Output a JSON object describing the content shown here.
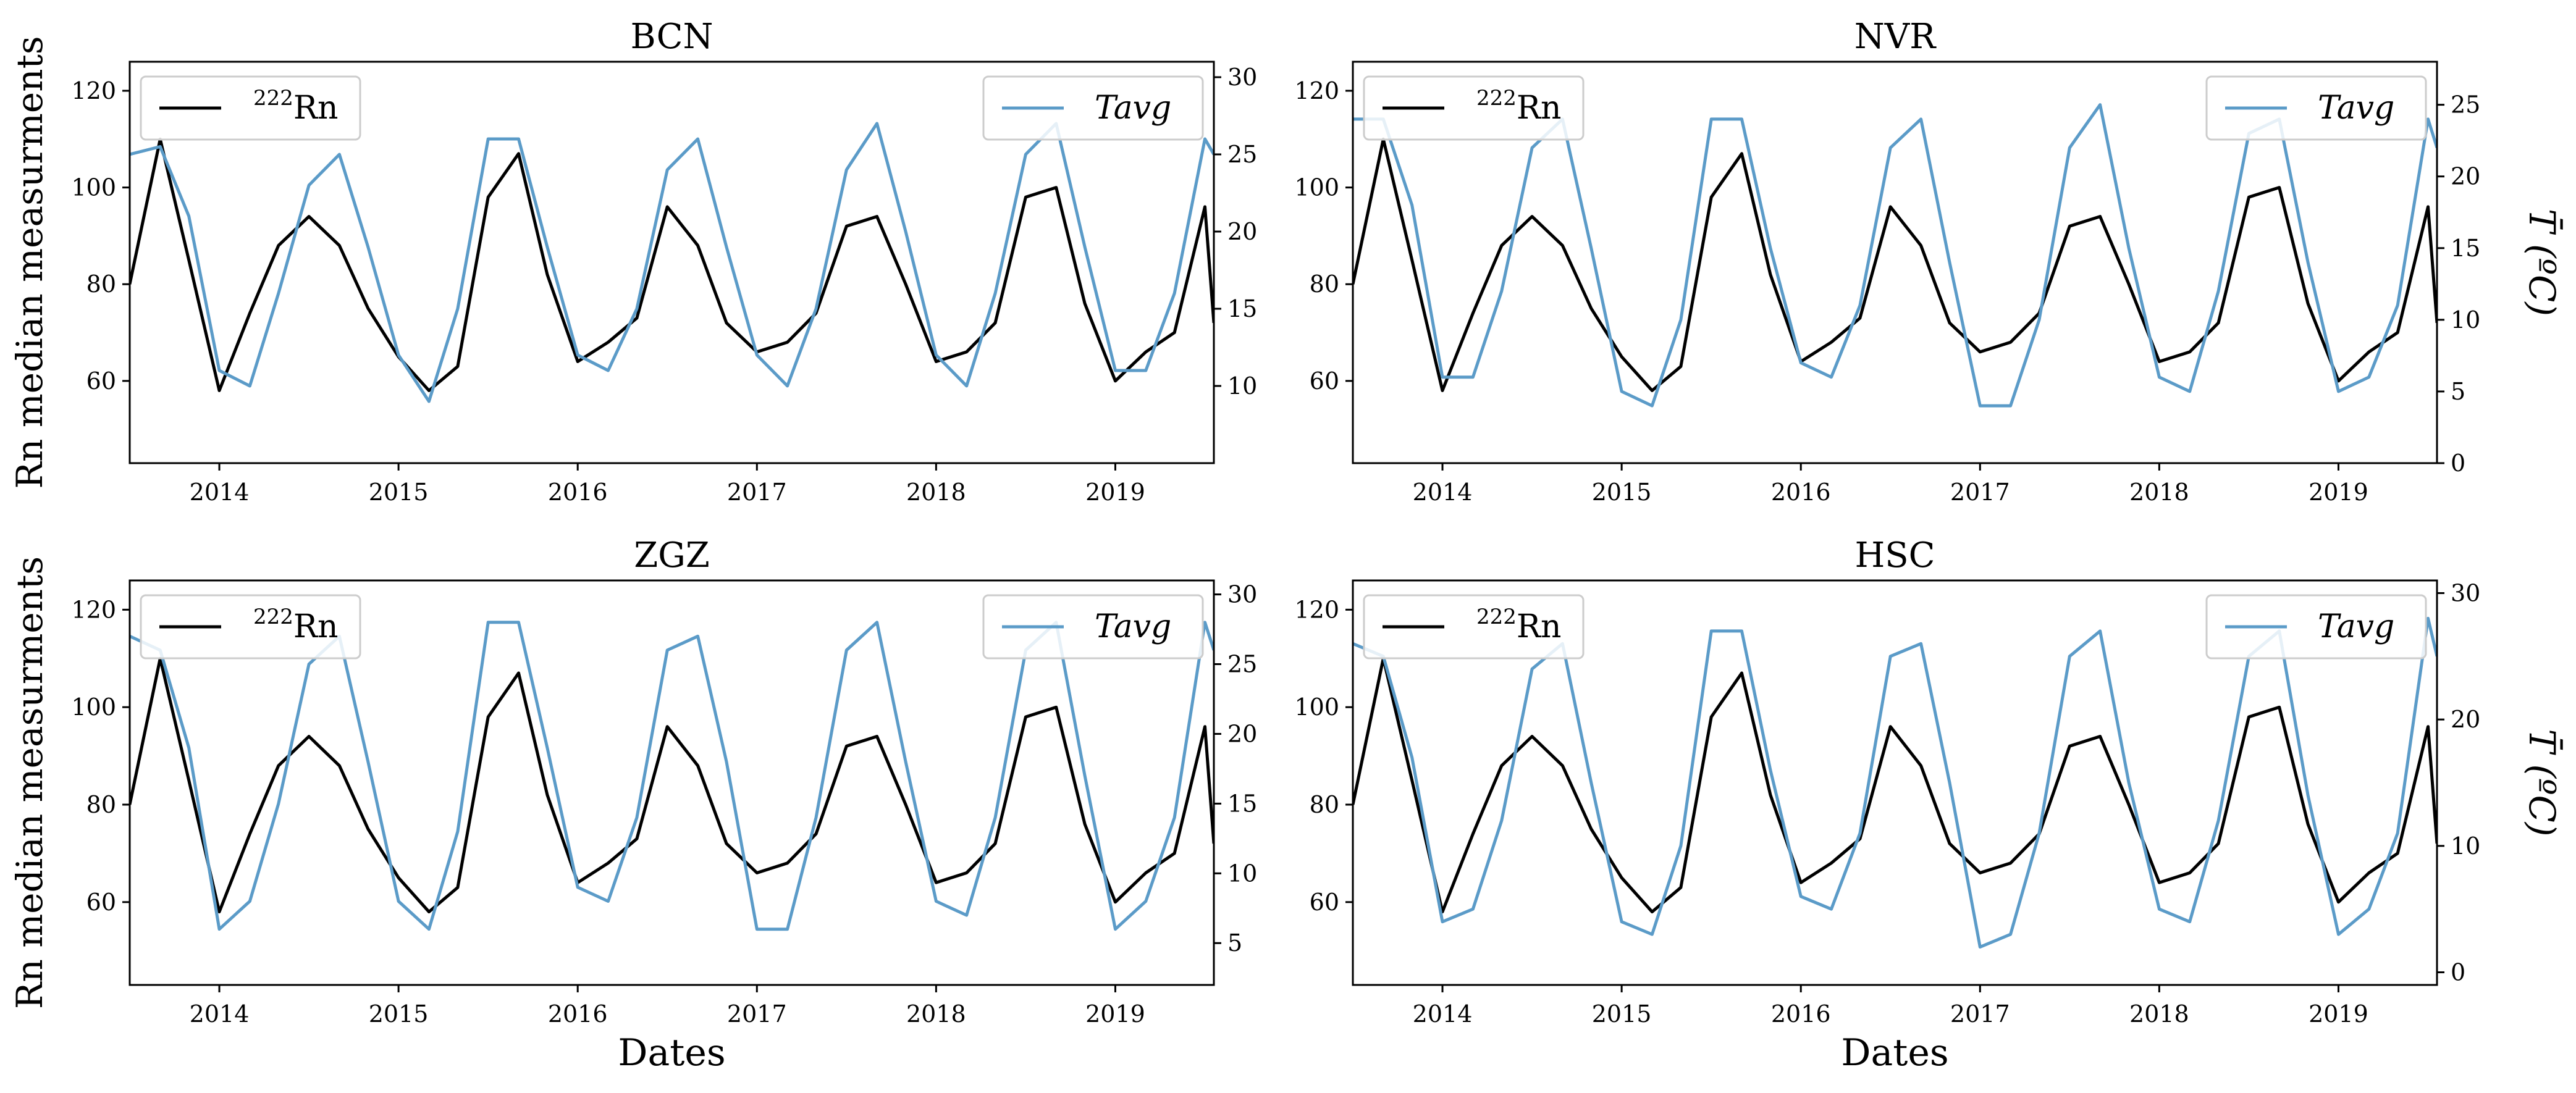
{
  "colors": {
    "rn": "#000000",
    "tavg": "#5b9bc8",
    "axes": "#000000",
    "legend_border": "#cccccc"
  },
  "labels": {
    "left_ylabel": "Rn median measurments",
    "right_ylabel": "T̄ (ºC)",
    "xlabel": "Dates",
    "legend_rn_prefix": "222",
    "legend_rn": "Rn",
    "legend_tavg": "Tavg"
  },
  "chart_data": [
    {
      "type": "line",
      "title": "BCN",
      "xlim": [
        2013.5,
        2019.55
      ],
      "ylim_left": [
        43,
        126
      ],
      "ylim_right": [
        5,
        31
      ],
      "xticks": [
        "2014",
        "2015",
        "2016",
        "2017",
        "2018",
        "2019"
      ],
      "yticks_left": [
        "60",
        "80",
        "100",
        "120"
      ],
      "yticks_right": [
        "10",
        "15",
        "20",
        "25",
        "30"
      ],
      "legend_left": "upper left",
      "legend_right": "upper right",
      "ylabel_left": "Rn median measurments",
      "ylabel_right": "",
      "xlabel": "",
      "series": [
        {
          "name": "222Rn",
          "axis": "left",
          "x": [
            2013.5,
            2013.67,
            2013.83,
            2014.0,
            2014.17,
            2014.33,
            2014.5,
            2014.67,
            2014.83,
            2015.0,
            2015.17,
            2015.33,
            2015.5,
            2015.67,
            2015.83,
            2016.0,
            2016.17,
            2016.33,
            2016.5,
            2016.67,
            2016.83,
            2017.0,
            2017.17,
            2017.33,
            2017.5,
            2017.67,
            2017.83,
            2018.0,
            2018.17,
            2018.33,
            2018.5,
            2018.67,
            2018.83,
            2019.0,
            2019.17,
            2019.33,
            2019.5,
            2019.55
          ],
          "values": [
            80,
            110,
            85,
            58,
            74,
            88,
            94,
            88,
            75,
            65,
            58,
            63,
            98,
            107,
            82,
            64,
            68,
            73,
            96,
            88,
            72,
            66,
            68,
            74,
            92,
            94,
            80,
            64,
            66,
            72,
            98,
            100,
            76,
            60,
            66,
            70,
            96,
            72
          ]
        },
        {
          "name": "Tavg",
          "axis": "right",
          "x": [
            2013.5,
            2013.67,
            2013.83,
            2014.0,
            2014.17,
            2014.33,
            2014.5,
            2014.67,
            2014.83,
            2015.0,
            2015.17,
            2015.33,
            2015.5,
            2015.67,
            2015.83,
            2016.0,
            2016.17,
            2016.33,
            2016.5,
            2016.67,
            2016.83,
            2017.0,
            2017.17,
            2017.33,
            2017.5,
            2017.67,
            2017.83,
            2018.0,
            2018.17,
            2018.33,
            2018.5,
            2018.67,
            2018.83,
            2019.0,
            2019.17,
            2019.33,
            2019.5,
            2019.55
          ],
          "values": [
            25,
            25.5,
            21,
            11,
            10,
            16,
            23,
            25,
            19,
            12,
            9,
            15,
            26,
            26,
            19,
            12,
            11,
            15,
            24,
            26,
            19,
            12,
            10,
            15,
            24,
            27,
            20,
            12,
            10,
            16,
            25,
            27,
            19,
            11,
            11,
            16,
            26,
            25
          ]
        }
      ]
    },
    {
      "type": "line",
      "title": "NVR",
      "xlim": [
        2013.5,
        2019.55
      ],
      "ylim_left": [
        43,
        126
      ],
      "ylim_right": [
        0,
        28
      ],
      "xticks": [
        "2014",
        "2015",
        "2016",
        "2017",
        "2018",
        "2019"
      ],
      "yticks_left": [
        "60",
        "80",
        "100",
        "120"
      ],
      "yticks_right": [
        "0",
        "5",
        "10",
        "15",
        "20",
        "25"
      ],
      "legend_left": "upper left",
      "legend_right": "upper right",
      "ylabel_left": "",
      "ylabel_right": "T̄ (ºC)",
      "xlabel": "",
      "series": [
        {
          "name": "222Rn",
          "axis": "left",
          "x": [
            2013.5,
            2013.67,
            2013.83,
            2014.0,
            2014.17,
            2014.33,
            2014.5,
            2014.67,
            2014.83,
            2015.0,
            2015.17,
            2015.33,
            2015.5,
            2015.67,
            2015.83,
            2016.0,
            2016.17,
            2016.33,
            2016.5,
            2016.67,
            2016.83,
            2017.0,
            2017.17,
            2017.33,
            2017.5,
            2017.67,
            2017.83,
            2018.0,
            2018.17,
            2018.33,
            2018.5,
            2018.67,
            2018.83,
            2019.0,
            2019.17,
            2019.33,
            2019.5,
            2019.55
          ],
          "values": [
            80,
            110,
            85,
            58,
            74,
            88,
            94,
            88,
            75,
            65,
            58,
            63,
            98,
            107,
            82,
            64,
            68,
            73,
            96,
            88,
            72,
            66,
            68,
            74,
            92,
            94,
            80,
            64,
            66,
            72,
            98,
            100,
            76,
            60,
            66,
            70,
            96,
            72
          ]
        },
        {
          "name": "Tavg",
          "axis": "right",
          "x": [
            2013.5,
            2013.67,
            2013.83,
            2014.0,
            2014.17,
            2014.33,
            2014.5,
            2014.67,
            2014.83,
            2015.0,
            2015.17,
            2015.33,
            2015.5,
            2015.67,
            2015.83,
            2016.0,
            2016.17,
            2016.33,
            2016.5,
            2016.67,
            2016.83,
            2017.0,
            2017.17,
            2017.33,
            2017.5,
            2017.67,
            2017.83,
            2018.0,
            2018.17,
            2018.33,
            2018.5,
            2018.67,
            2018.83,
            2019.0,
            2019.17,
            2019.33,
            2019.5,
            2019.55
          ],
          "values": [
            24,
            24,
            18,
            6,
            6,
            12,
            22,
            24,
            15,
            5,
            4,
            10,
            24,
            24,
            15,
            7,
            6,
            11,
            22,
            24,
            14,
            4,
            4,
            10,
            22,
            25,
            15,
            6,
            5,
            12,
            23,
            24,
            14,
            5,
            6,
            11,
            24,
            22
          ]
        }
      ]
    },
    {
      "type": "line",
      "title": "ZGZ",
      "xlim": [
        2013.5,
        2019.55
      ],
      "ylim_left": [
        43,
        126
      ],
      "ylim_right": [
        2,
        31
      ],
      "xticks": [
        "2014",
        "2015",
        "2016",
        "2017",
        "2018",
        "2019"
      ],
      "yticks_left": [
        "60",
        "80",
        "100",
        "120"
      ],
      "yticks_right": [
        "5",
        "10",
        "15",
        "20",
        "25",
        "30"
      ],
      "legend_left": "upper left",
      "legend_right": "upper right",
      "ylabel_left": "Rn median measurments",
      "ylabel_right": "",
      "xlabel": "Dates",
      "series": [
        {
          "name": "222Rn",
          "axis": "left",
          "x": [
            2013.5,
            2013.67,
            2013.83,
            2014.0,
            2014.17,
            2014.33,
            2014.5,
            2014.67,
            2014.83,
            2015.0,
            2015.17,
            2015.33,
            2015.5,
            2015.67,
            2015.83,
            2016.0,
            2016.17,
            2016.33,
            2016.5,
            2016.67,
            2016.83,
            2017.0,
            2017.17,
            2017.33,
            2017.5,
            2017.67,
            2017.83,
            2018.0,
            2018.17,
            2018.33,
            2018.5,
            2018.67,
            2018.83,
            2019.0,
            2019.17,
            2019.33,
            2019.5,
            2019.55
          ],
          "values": [
            80,
            110,
            85,
            58,
            74,
            88,
            94,
            88,
            75,
            65,
            58,
            63,
            98,
            107,
            82,
            64,
            68,
            73,
            96,
            88,
            72,
            66,
            68,
            74,
            92,
            94,
            80,
            64,
            66,
            72,
            98,
            100,
            76,
            60,
            66,
            70,
            96,
            72
          ]
        },
        {
          "name": "Tavg",
          "axis": "right",
          "x": [
            2013.5,
            2013.67,
            2013.83,
            2014.0,
            2014.17,
            2014.33,
            2014.5,
            2014.67,
            2014.83,
            2015.0,
            2015.17,
            2015.33,
            2015.5,
            2015.67,
            2015.83,
            2016.0,
            2016.17,
            2016.33,
            2016.5,
            2016.67,
            2016.83,
            2017.0,
            2017.17,
            2017.33,
            2017.5,
            2017.67,
            2017.83,
            2018.0,
            2018.17,
            2018.33,
            2018.5,
            2018.67,
            2018.83,
            2019.0,
            2019.17,
            2019.33,
            2019.5,
            2019.55
          ],
          "values": [
            27,
            26,
            19,
            6,
            8,
            15,
            25,
            27,
            18,
            8,
            6,
            13,
            28,
            28,
            19,
            9,
            8,
            14,
            26,
            27,
            18,
            6,
            6,
            14,
            26,
            28,
            18,
            8,
            7,
            14,
            26,
            28,
            17,
            6,
            8,
            14,
            28,
            26
          ]
        }
      ]
    },
    {
      "type": "line",
      "title": "HSC",
      "xlim": [
        2013.5,
        2019.55
      ],
      "ylim_left": [
        43,
        126
      ],
      "ylim_right": [
        -1,
        31
      ],
      "xticks": [
        "2014",
        "2015",
        "2016",
        "2017",
        "2018",
        "2019"
      ],
      "yticks_left": [
        "60",
        "80",
        "100",
        "120"
      ],
      "yticks_right": [
        "0",
        "10",
        "20",
        "30"
      ],
      "legend_left": "upper left",
      "legend_right": "upper right",
      "ylabel_left": "",
      "ylabel_right": "T̄ (ºC)",
      "xlabel": "Dates",
      "series": [
        {
          "name": "222Rn",
          "axis": "left",
          "x": [
            2013.5,
            2013.67,
            2013.83,
            2014.0,
            2014.17,
            2014.33,
            2014.5,
            2014.67,
            2014.83,
            2015.0,
            2015.17,
            2015.33,
            2015.5,
            2015.67,
            2015.83,
            2016.0,
            2016.17,
            2016.33,
            2016.5,
            2016.67,
            2016.83,
            2017.0,
            2017.17,
            2017.33,
            2017.5,
            2017.67,
            2017.83,
            2018.0,
            2018.17,
            2018.33,
            2018.5,
            2018.67,
            2018.83,
            2019.0,
            2019.17,
            2019.33,
            2019.5,
            2019.55
          ],
          "values": [
            80,
            110,
            85,
            58,
            74,
            88,
            94,
            88,
            75,
            65,
            58,
            63,
            98,
            107,
            82,
            64,
            68,
            73,
            96,
            88,
            72,
            66,
            68,
            74,
            92,
            94,
            80,
            64,
            66,
            72,
            98,
            100,
            76,
            60,
            66,
            70,
            96,
            72
          ]
        },
        {
          "name": "Tavg",
          "axis": "right",
          "x": [
            2013.5,
            2013.67,
            2013.83,
            2014.0,
            2014.17,
            2014.33,
            2014.5,
            2014.67,
            2014.83,
            2015.0,
            2015.17,
            2015.33,
            2015.5,
            2015.67,
            2015.83,
            2016.0,
            2016.17,
            2016.33,
            2016.5,
            2016.67,
            2016.83,
            2017.0,
            2017.17,
            2017.33,
            2017.5,
            2017.67,
            2017.83,
            2018.0,
            2018.17,
            2018.33,
            2018.5,
            2018.67,
            2018.83,
            2019.0,
            2019.17,
            2019.33,
            2019.5,
            2019.55
          ],
          "values": [
            26,
            25,
            17,
            4,
            5,
            12,
            24,
            26,
            15,
            4,
            3,
            10,
            27,
            27,
            16,
            6,
            5,
            11,
            25,
            26,
            15,
            2,
            3,
            11,
            25,
            27,
            15,
            5,
            4,
            12,
            25,
            27,
            14,
            3,
            5,
            11,
            28,
            25
          ]
        }
      ]
    }
  ]
}
